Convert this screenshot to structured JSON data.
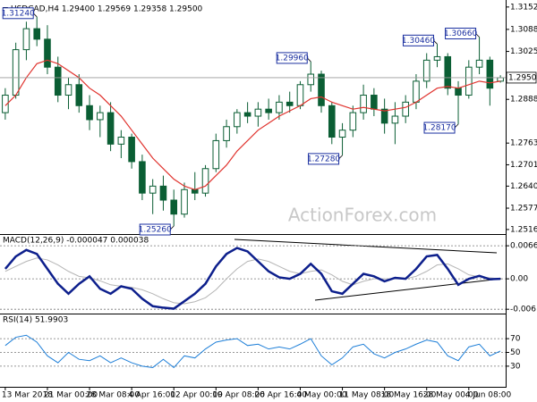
{
  "chart_data": [
    {
      "type": "candlestick",
      "title": "USDCAD,H4 1.29400 1.29569 1.29358 1.29500",
      "watermark": "ActionForex.com",
      "color": "#0b5e34",
      "categories": [
        "13 Mar 2018",
        null,
        null,
        null,
        "21 Mar 00:00",
        null,
        null,
        null,
        "28 Mar 08:00",
        null,
        null,
        null,
        "4 Apr 16:00",
        null,
        null,
        null,
        "12 Apr 00:00",
        null,
        null,
        null,
        "19 Apr 08:00",
        null,
        null,
        null,
        "26 Apr 16:00",
        null,
        null,
        null,
        "4 May 00:00",
        null,
        null,
        null,
        "11 May 08:00",
        null,
        null,
        null,
        "18 May 16:00",
        null,
        null,
        null,
        "28 May 00:00",
        null,
        null,
        null,
        "4 Jun 08:00",
        null,
        null,
        null
      ],
      "open": [
        1.285,
        1.29,
        1.303,
        1.309,
        1.306,
        1.298,
        1.29,
        1.293,
        1.287,
        1.283,
        1.285,
        1.276,
        1.278,
        1.271,
        1.262,
        1.264,
        1.26,
        1.256,
        1.263,
        1.262,
        1.269,
        1.277,
        1.281,
        1.285,
        1.284,
        1.286,
        1.285,
        1.288,
        1.287,
        1.293,
        1.296,
        1.287,
        1.278,
        1.28,
        1.285,
        1.29,
        1.286,
        1.282,
        1.284,
        1.288,
        1.294,
        1.3,
        1.301,
        1.292,
        1.29,
        1.298,
        1.3,
        1.294
      ],
      "high": [
        1.292,
        1.305,
        1.311,
        1.3124,
        1.31,
        1.301,
        1.295,
        1.296,
        1.29,
        1.287,
        1.288,
        1.28,
        1.279,
        1.273,
        1.266,
        1.267,
        1.263,
        1.265,
        1.268,
        1.27,
        1.279,
        1.283,
        1.286,
        1.288,
        1.288,
        1.289,
        1.29,
        1.291,
        1.294,
        1.2996,
        1.297,
        1.288,
        1.282,
        1.287,
        1.293,
        1.292,
        1.289,
        1.288,
        1.29,
        1.296,
        1.302,
        1.3046,
        1.302,
        1.294,
        1.3,
        1.3066,
        1.301,
        1.29569
      ],
      "low": [
        1.283,
        1.289,
        1.3,
        1.304,
        1.296,
        1.288,
        1.286,
        1.285,
        1.28,
        1.278,
        1.274,
        1.272,
        1.269,
        1.26,
        1.256,
        1.257,
        1.2526,
        1.255,
        1.26,
        1.261,
        1.268,
        1.275,
        1.279,
        1.282,
        1.281,
        1.283,
        1.283,
        1.285,
        1.286,
        1.291,
        1.285,
        1.276,
        1.2728,
        1.278,
        1.283,
        1.284,
        1.279,
        1.276,
        1.282,
        1.286,
        1.292,
        1.298,
        1.29,
        1.2817,
        1.289,
        1.296,
        1.287,
        1.29358
      ],
      "close": [
        1.29,
        1.303,
        1.309,
        1.306,
        1.298,
        1.29,
        1.293,
        1.287,
        1.283,
        1.285,
        1.276,
        1.278,
        1.271,
        1.262,
        1.264,
        1.26,
        1.256,
        1.263,
        1.262,
        1.269,
        1.277,
        1.281,
        1.285,
        1.284,
        1.286,
        1.285,
        1.288,
        1.287,
        1.293,
        1.296,
        1.287,
        1.278,
        1.28,
        1.285,
        1.29,
        1.286,
        1.282,
        1.284,
        1.288,
        1.294,
        1.3,
        1.301,
        1.292,
        1.29,
        1.298,
        1.3,
        1.292,
        1.295
      ],
      "ma": {
        "color": "#e0332e",
        "values": [
          1.287,
          1.29,
          1.295,
          1.299,
          1.3,
          1.299,
          1.297,
          1.295,
          1.292,
          1.29,
          1.287,
          1.284,
          1.28,
          1.276,
          1.272,
          1.269,
          1.266,
          1.264,
          1.263,
          1.264,
          1.267,
          1.27,
          1.274,
          1.277,
          1.28,
          1.282,
          1.284,
          1.2855,
          1.287,
          1.289,
          1.2895,
          1.288,
          1.287,
          1.286,
          1.2865,
          1.286,
          1.2855,
          1.286,
          1.2865,
          1.288,
          1.29,
          1.292,
          1.2925,
          1.292,
          1.293,
          1.294,
          1.2935,
          1.294
        ]
      },
      "ylim": [
        1.2503,
        1.3172
      ],
      "yticks": [
        {
          "value": 1.3152,
          "label": "1.31520"
        },
        {
          "value": 1.3088,
          "label": "1.30880"
        },
        {
          "value": 1.3025,
          "label": "1.30250"
        },
        {
          "value": 1.2888,
          "label": "1.28880"
        },
        {
          "value": 1.2763,
          "label": "1.27630"
        },
        {
          "value": 1.2701,
          "label": "1.27010"
        },
        {
          "value": 1.264,
          "label": "1.26400"
        },
        {
          "value": 1.2577,
          "label": "1.25770"
        },
        {
          "value": 1.2516,
          "label": "1.25160"
        }
      ],
      "current": {
        "value": 1.295,
        "label": "1.29500"
      },
      "annotations": [
        {
          "value": 1.3124,
          "label": "1.31240"
        },
        {
          "value": 1.2526,
          "label": "1.25260"
        },
        {
          "value": 1.2996,
          "label": "1.29960"
        },
        {
          "value": 1.2728,
          "label": "1.27280"
        },
        {
          "value": 1.3046,
          "label": "1.30460"
        },
        {
          "value": 1.2817,
          "label": "1.28170"
        },
        {
          "value": 1.3066,
          "label": "1.30660"
        }
      ]
    },
    {
      "type": "line",
      "title": "MACD(12,26,9) -0.000047 0.000038",
      "grid": true,
      "series": [
        {
          "color": "#0d1f8c",
          "values": [
            0.002,
            0.0045,
            0.0058,
            0.005,
            0.002,
            -0.001,
            -0.003,
            -0.001,
            0.0005,
            -0.002,
            -0.003,
            -0.0015,
            -0.002,
            -0.004,
            -0.0055,
            -0.0058,
            -0.006,
            -0.0045,
            -0.003,
            -0.001,
            0.0025,
            0.005,
            0.0062,
            0.0055,
            0.0035,
            0.0015,
            0.0003,
            0.0,
            0.001,
            0.003,
            0.001,
            -0.0025,
            -0.003,
            -0.001,
            0.001,
            0.0005,
            -0.0005,
            0.0002,
            0.0,
            0.002,
            0.0045,
            0.0048,
            0.002,
            -0.0012,
            0.0,
            0.0006,
            -0.0001,
            0.0
          ]
        },
        {
          "color": "#b5b5b5",
          "values": [
            0.0015,
            0.0025,
            0.0035,
            0.0042,
            0.0038,
            0.0028,
            0.0015,
            0.0005,
            0.0002,
            -0.0004,
            -0.0012,
            -0.0015,
            -0.0017,
            -0.0022,
            -0.003,
            -0.004,
            -0.0048,
            -0.005,
            -0.0046,
            -0.0038,
            -0.0022,
            0.0,
            0.002,
            0.0035,
            0.004,
            0.0035,
            0.0025,
            0.0015,
            0.001,
            0.0015,
            0.0018,
            0.0008,
            -0.0005,
            -0.0012,
            -0.0005,
            0.0,
            0.0,
            0.0,
            0.0,
            0.0005,
            0.0015,
            0.0028,
            0.003,
            0.002,
            0.0008,
            0.0004,
            0.0002,
            0.0
          ]
        }
      ],
      "ylim": [
        -0.0068,
        0.0072
      ],
      "yticks": [
        0.006639,
        {
          "value": 0,
          "label": "0.00"
        },
        -0.006114
      ]
    },
    {
      "type": "line",
      "title": "RSI(14) 51.9903",
      "grid": true,
      "series": [
        {
          "color": "#1e7fd8",
          "values": [
            60,
            72,
            75,
            65,
            45,
            35,
            50,
            40,
            38,
            45,
            35,
            42,
            35,
            30,
            28,
            40,
            28,
            45,
            42,
            55,
            65,
            68,
            70,
            60,
            62,
            55,
            58,
            55,
            62,
            70,
            45,
            32,
            42,
            58,
            62,
            48,
            42,
            50,
            55,
            62,
            68,
            65,
            45,
            38,
            58,
            62,
            45,
            52
          ]
        }
      ],
      "ylim": [
        0,
        100
      ],
      "yticks": [
        70,
        50,
        30
      ]
    }
  ]
}
